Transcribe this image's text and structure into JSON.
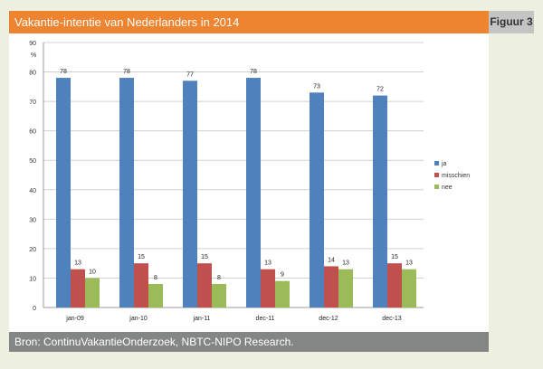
{
  "header": {
    "title": "Vakantie-intentie van Nederlanders in 2014",
    "figure_label": "Figuur 3"
  },
  "footer": {
    "source": "Bron: ContinuVakantieOnderzoek, NBTC-NIPO Research."
  },
  "chart_data": {
    "type": "bar",
    "title": "Vakantie-intentie van Nederlanders in 2014",
    "ylabel": "%",
    "xlabel": "",
    "ylim": [
      0,
      90
    ],
    "yticks": [
      0,
      10,
      20,
      30,
      40,
      50,
      60,
      70,
      80,
      90
    ],
    "grid": true,
    "legend": "right",
    "categories": [
      "jan-09",
      "jan-10",
      "jan-11",
      "dec-11",
      "dec-12",
      "dec-13"
    ],
    "series": [
      {
        "name": "ja",
        "color": "#4f81bd",
        "values": [
          78,
          78,
          77,
          78,
          73,
          72
        ]
      },
      {
        "name": "misschien",
        "color": "#c0504d",
        "values": [
          13,
          15,
          15,
          13,
          14,
          15
        ]
      },
      {
        "name": "nee",
        "color": "#9bbb59",
        "values": [
          10,
          8,
          8,
          9,
          13,
          13
        ]
      }
    ]
  }
}
